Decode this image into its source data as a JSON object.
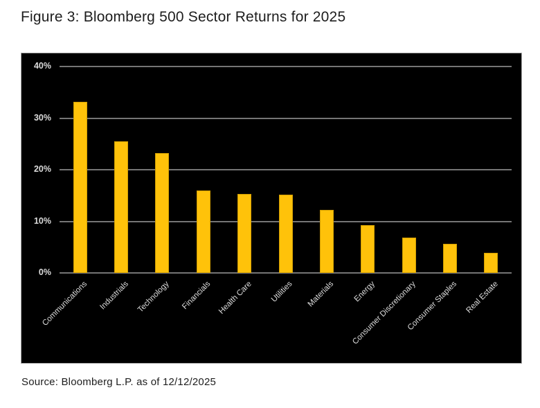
{
  "page": {
    "title": "Figure 3: Bloomberg 500 Sector Returns for 2025",
    "source_caption": "Source: Bloomberg L.P. as of 12/12/2025"
  },
  "colors": {
    "page_bg": "#ffffff",
    "title_text": "#1d1d1d",
    "source_text": "#1d1d1d",
    "chart_bg": "#000000",
    "chart_border": "#a6a6a6",
    "gridline": "#757575",
    "axis_text": "#dcdcdc",
    "bar_fill": "#ffc20a",
    "bar_edge": "#d39e00"
  },
  "chart_data": {
    "type": "bar",
    "title": "Figure 3: Bloomberg 500 Sector Returns for 2025",
    "categories": [
      "Communications",
      "Industrials",
      "Technology",
      "Financials",
      "Health Care",
      "Utilities",
      "Materials",
      "Energy",
      "Consumer Discretionary",
      "Consumer Staples",
      "Real Estate"
    ],
    "values": [
      33.2,
      25.5,
      23.2,
      16.0,
      15.3,
      15.2,
      12.2,
      9.2,
      6.9,
      5.7,
      3.9
    ],
    "value_unit": "%",
    "xlabel": "",
    "ylabel": "",
    "ylim": [
      0,
      40
    ],
    "yticks": [
      0,
      10,
      20,
      30,
      40
    ],
    "ytick_labels": [
      "0%",
      "10%",
      "20%",
      "30%",
      "40%"
    ],
    "grid": true,
    "legend": false,
    "bar_color": "#ffc20a",
    "plot_background": "#000000",
    "source": "Source: Bloomberg L.P. as of 12/12/2025"
  }
}
